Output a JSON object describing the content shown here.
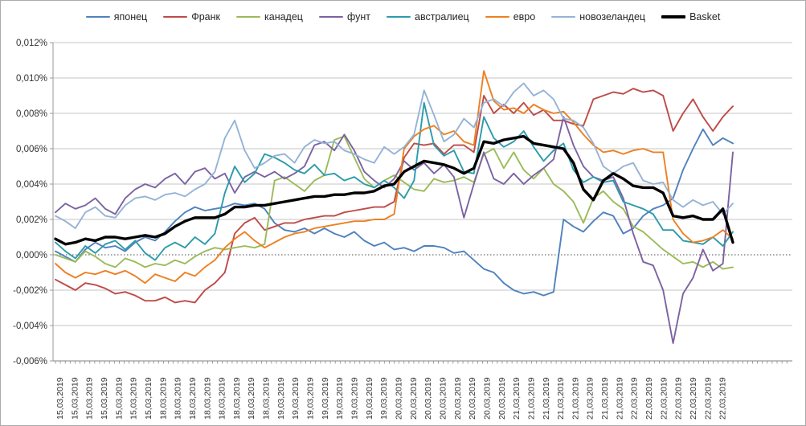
{
  "chart_data": {
    "type": "line",
    "title": "",
    "xlabel": "",
    "ylabel": "",
    "y_unit": "%",
    "ylim": [
      -0.006,
      0.012
    ],
    "y_step": 0.002,
    "grid": "horizontal",
    "zero_line": "dotted",
    "legend_position": "top",
    "n_points": 69,
    "y_tick_labels": [
      "0,012%",
      "0,010%",
      "0,008%",
      "0,006%",
      "0,004%",
      "0,002%",
      "0,000%",
      "-0,002%",
      "-0,004%",
      "-0,006%"
    ],
    "x_tick_labels": [
      "15,03,2019",
      "15,03,2019",
      "15,03,2019",
      "15,03,2019",
      "15,03,2019",
      "15,03,2019",
      "15,03,2019",
      "18,03,2019",
      "18,03,2019",
      "18,03,2019",
      "18,03,2019",
      "18,03,2019",
      "18,03,2019",
      "18,03,2019",
      "18,03,2019",
      "19,03,2019",
      "19,03,2019",
      "19,03,2019",
      "19,03,2019",
      "19,03,2019",
      "19,03,2019",
      "19,03,2019",
      "19,03,2019",
      "20,03,2019",
      "20,03,2019",
      "20,03,2019",
      "20,03,2019",
      "20,03,2019",
      "20,03,2019",
      "20,03,2019",
      "20,03,2019",
      "21,03,2019",
      "21,03,2019",
      "21,03,2019",
      "21,03,2019",
      "21,03,2019",
      "21,03,2019",
      "21,03,2019",
      "21,03,2019",
      "22,03,2019",
      "22,03,2019",
      "22,03,2019",
      "22,03,2019",
      "22,03,2019",
      "22,03,2019",
      "22,03,2019"
    ],
    "series": [
      {
        "name": "японец",
        "color": "#4F81BD",
        "width": 1.9,
        "values": [
          0.0002,
          -0.0001,
          -0.0004,
          0.0003,
          0.0007,
          0.0004,
          0.0005,
          0.0002,
          0.0007,
          0.001,
          0.0008,
          0.0013,
          0.0019,
          0.0024,
          0.0027,
          0.0025,
          0.0026,
          0.0027,
          0.0029,
          0.0028,
          0.0029,
          0.0026,
          0.0018,
          0.0014,
          0.0013,
          0.0015,
          0.0012,
          0.0015,
          0.0012,
          0.001,
          0.0013,
          0.0008,
          0.0005,
          0.0007,
          0.0003,
          0.0004,
          0.0002,
          0.0005,
          0.0005,
          0.0004,
          0.0001,
          0.0002,
          -0.0003,
          -0.0008,
          -0.001,
          -0.0016,
          -0.002,
          -0.0022,
          -0.0021,
          -0.0023,
          -0.0021,
          0.002,
          0.0016,
          0.0013,
          0.0019,
          0.0024,
          0.0022,
          0.0012,
          0.0015,
          0.0022,
          0.0026,
          0.0028,
          0.0032,
          0.0048,
          0.006,
          0.0071,
          0.0062,
          0.0066,
          0.0063
        ]
      },
      {
        "name": "Франк",
        "color": "#BE4B48",
        "width": 1.9,
        "values": [
          -0.0014,
          -0.0017,
          -0.002,
          -0.0016,
          -0.0017,
          -0.0019,
          -0.0022,
          -0.0021,
          -0.0023,
          -0.0026,
          -0.0026,
          -0.0024,
          -0.0027,
          -0.0026,
          -0.0027,
          -0.002,
          -0.0016,
          -0.001,
          0.0012,
          0.0018,
          0.0021,
          0.0014,
          0.0016,
          0.0018,
          0.0018,
          0.002,
          0.0021,
          0.0022,
          0.0022,
          0.0024,
          0.0025,
          0.0026,
          0.0027,
          0.0027,
          0.003,
          0.0055,
          0.0063,
          0.0062,
          0.0063,
          0.0057,
          0.0062,
          0.0062,
          0.0058,
          0.009,
          0.008,
          0.0085,
          0.008,
          0.0086,
          0.0079,
          0.0082,
          0.0076,
          0.0076,
          0.0074,
          0.0073,
          0.0088,
          0.009,
          0.0092,
          0.0091,
          0.0094,
          0.0092,
          0.0093,
          0.009,
          0.007,
          0.008,
          0.0088,
          0.0078,
          0.007,
          0.0078,
          0.0084
        ]
      },
      {
        "name": "канадец",
        "color": "#9BBB59",
        "width": 1.9,
        "values": [
          0.0,
          -0.0002,
          -0.0004,
          0.0002,
          -0.0001,
          -0.0005,
          -0.0007,
          -0.0002,
          -0.0004,
          -0.0007,
          -0.0005,
          -0.0006,
          -0.0003,
          -0.0005,
          -0.0001,
          0.0002,
          0.0004,
          0.0003,
          0.0004,
          0.0005,
          0.0004,
          0.0006,
          0.0042,
          0.0044,
          0.004,
          0.0036,
          0.0042,
          0.0045,
          0.0065,
          0.0067,
          0.0055,
          0.0043,
          0.0038,
          0.0042,
          0.0045,
          0.0041,
          0.0037,
          0.0036,
          0.0043,
          0.0041,
          0.0042,
          0.0044,
          0.0041,
          0.0057,
          0.006,
          0.0049,
          0.0058,
          0.0048,
          0.0043,
          0.0049,
          0.004,
          0.0036,
          0.003,
          0.0018,
          0.0032,
          0.0036,
          0.003,
          0.0026,
          0.0016,
          0.0013,
          0.0008,
          0.0003,
          -0.0001,
          -0.0005,
          -0.0004,
          -0.0007,
          -0.0004,
          -0.0008,
          -0.0007
        ]
      },
      {
        "name": "фунт",
        "color": "#7C62A1",
        "width": 1.9,
        "values": [
          0.0024,
          0.0029,
          0.0026,
          0.0028,
          0.0032,
          0.0026,
          0.0023,
          0.0032,
          0.0037,
          0.004,
          0.0038,
          0.0043,
          0.0046,
          0.004,
          0.0047,
          0.0049,
          0.0043,
          0.0046,
          0.0035,
          0.0044,
          0.0047,
          0.0044,
          0.0047,
          0.0043,
          0.0046,
          0.005,
          0.0062,
          0.0064,
          0.0059,
          0.0068,
          0.0059,
          0.0047,
          0.0042,
          0.0038,
          0.0043,
          0.0053,
          0.0048,
          0.0052,
          0.0046,
          0.0051,
          0.0044,
          0.0021,
          0.004,
          0.0058,
          0.0043,
          0.004,
          0.0046,
          0.004,
          0.0045,
          0.0049,
          0.0054,
          0.0078,
          0.0062,
          0.005,
          0.0044,
          0.0042,
          0.0044,
          0.0032,
          0.0012,
          -0.0004,
          -0.0006,
          -0.002,
          -0.005,
          -0.0022,
          -0.0013,
          0.0003,
          -0.0009,
          -0.0005,
          0.0058
        ]
      },
      {
        "name": "австралиец",
        "color": "#2D9BAB",
        "width": 1.9,
        "values": [
          0.0007,
          0.0002,
          -0.0002,
          0.0005,
          0.0001,
          0.0006,
          0.0008,
          0.0003,
          0.0008,
          0.0001,
          -0.0003,
          0.0004,
          0.0007,
          0.0004,
          0.001,
          0.0006,
          0.0012,
          0.0035,
          0.005,
          0.0041,
          0.0046,
          0.0057,
          0.0055,
          0.0052,
          0.0048,
          0.0046,
          0.0051,
          0.0045,
          0.0046,
          0.0042,
          0.0044,
          0.004,
          0.0038,
          0.0042,
          0.0038,
          0.0032,
          0.0042,
          0.0086,
          0.0062,
          0.0056,
          0.0059,
          0.0047,
          0.0046,
          0.0078,
          0.0066,
          0.0061,
          0.0064,
          0.007,
          0.0061,
          0.0053,
          0.0059,
          0.0063,
          0.0048,
          0.0041,
          0.0044,
          0.0041,
          0.0042,
          0.003,
          0.0028,
          0.0026,
          0.0023,
          0.0014,
          0.0014,
          0.0008,
          0.0007,
          0.0006,
          0.001,
          0.0005,
          0.0013
        ]
      },
      {
        "name": "евро",
        "color": "#ED8022",
        "width": 1.9,
        "values": [
          -0.0005,
          -0.001,
          -0.0013,
          -0.001,
          -0.0011,
          -0.0009,
          -0.0011,
          -0.0009,
          -0.0012,
          -0.0016,
          -0.0011,
          -0.0013,
          -0.0015,
          -0.001,
          -0.0012,
          -0.0007,
          -0.0003,
          0.0004,
          0.0009,
          0.0013,
          0.0008,
          0.0004,
          0.0007,
          0.001,
          0.0012,
          0.0013,
          0.0015,
          0.0016,
          0.0017,
          0.0018,
          0.0019,
          0.0019,
          0.002,
          0.002,
          0.0023,
          0.006,
          0.0067,
          0.0071,
          0.0073,
          0.0068,
          0.007,
          0.0064,
          0.0062,
          0.0104,
          0.0087,
          0.0082,
          0.0083,
          0.008,
          0.0085,
          0.0082,
          0.008,
          0.0081,
          0.0075,
          0.0068,
          0.0062,
          0.0058,
          0.0059,
          0.0057,
          0.0059,
          0.006,
          0.0058,
          0.0058,
          0.002,
          0.0012,
          0.0007,
          0.0008,
          0.001,
          0.0014,
          0.0009
        ]
      },
      {
        "name": "новозеландец",
        "color": "#95B3D7",
        "width": 1.9,
        "values": [
          0.0022,
          0.0019,
          0.0015,
          0.0024,
          0.0027,
          0.0022,
          0.0021,
          0.0028,
          0.0032,
          0.0033,
          0.0031,
          0.0034,
          0.0035,
          0.0033,
          0.0037,
          0.004,
          0.0047,
          0.0066,
          0.0076,
          0.0059,
          0.0049,
          0.0052,
          0.0056,
          0.0057,
          0.0052,
          0.0061,
          0.0065,
          0.0063,
          0.0064,
          0.0059,
          0.0057,
          0.0054,
          0.0052,
          0.0061,
          0.0057,
          0.0061,
          0.0068,
          0.0093,
          0.0079,
          0.0064,
          0.0068,
          0.0077,
          0.0072,
          0.0086,
          0.0088,
          0.0084,
          0.0092,
          0.0097,
          0.009,
          0.0093,
          0.0088,
          0.0077,
          0.0076,
          0.0072,
          0.0063,
          0.005,
          0.0046,
          0.005,
          0.0052,
          0.0042,
          0.004,
          0.0041,
          0.0031,
          0.0027,
          0.0031,
          0.0028,
          0.003,
          0.0023,
          0.0029
        ]
      },
      {
        "name": "Basket",
        "color": "#000000",
        "width": 3.4,
        "values": [
          0.0009,
          0.0006,
          0.0007,
          0.0009,
          0.0008,
          0.001,
          0.001,
          0.0009,
          0.001,
          0.0011,
          0.001,
          0.0012,
          0.0016,
          0.0019,
          0.0021,
          0.0021,
          0.0021,
          0.0023,
          0.0027,
          0.0027,
          0.0028,
          0.0028,
          0.0029,
          0.003,
          0.0031,
          0.0032,
          0.0033,
          0.0033,
          0.0034,
          0.0034,
          0.0035,
          0.0035,
          0.0036,
          0.0039,
          0.004,
          0.0047,
          0.005,
          0.0053,
          0.0052,
          0.0051,
          0.0049,
          0.0046,
          0.0049,
          0.0064,
          0.0063,
          0.0065,
          0.0066,
          0.0067,
          0.0063,
          0.0062,
          0.0061,
          0.006,
          0.0052,
          0.0037,
          0.0031,
          0.0042,
          0.0046,
          0.0043,
          0.0039,
          0.0038,
          0.0038,
          0.0035,
          0.0022,
          0.0021,
          0.0022,
          0.002,
          0.002,
          0.0026,
          0.0007
        ]
      }
    ]
  },
  "colors": {
    "grid": "#c6c6c6",
    "axis": "#9a9a9a",
    "zero_line": "#4d4d4d",
    "tick": "#8a8a8a",
    "label_text": "#333333"
  }
}
